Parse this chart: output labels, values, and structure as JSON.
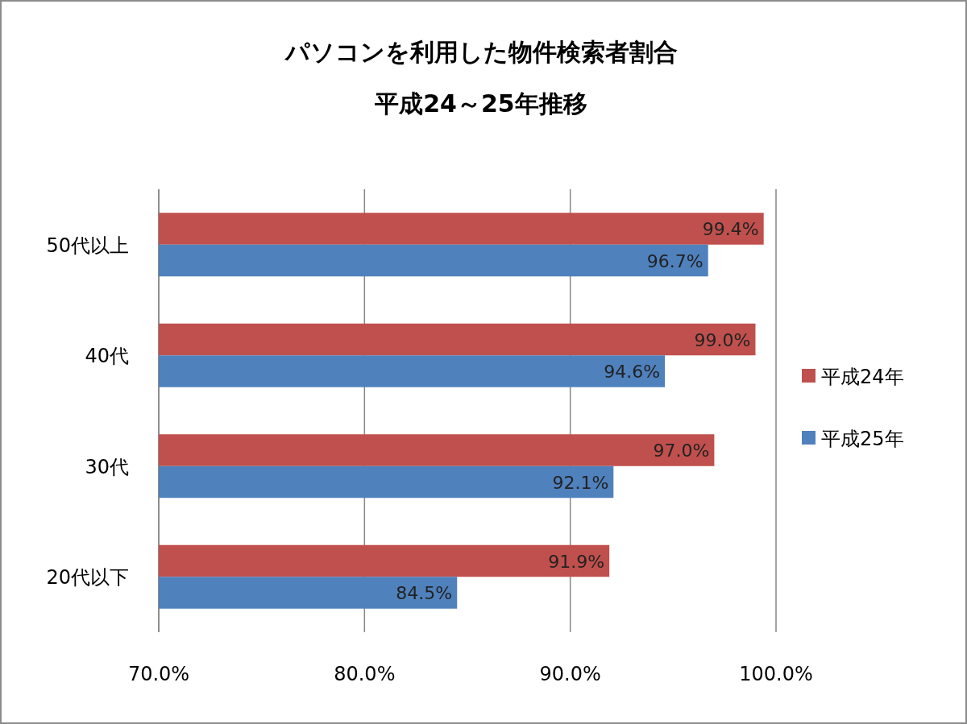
{
  "chart_data": {
    "type": "bar",
    "orientation": "horizontal",
    "title": "パソコンを利用した物件検索者割合",
    "subtitle": "平成24～25年推移",
    "categories": [
      "50代以上",
      "40代",
      "30代",
      "20代以下"
    ],
    "series": [
      {
        "name": "平成24年",
        "color": "#c0504d",
        "values": [
          99.4,
          99.0,
          97.0,
          91.9
        ],
        "value_labels": [
          "99.4%",
          "99.0%",
          "97.0%",
          "91.9%"
        ]
      },
      {
        "name": "平成25年",
        "color": "#4f81bd",
        "values": [
          96.7,
          94.6,
          92.1,
          84.5
        ],
        "value_labels": [
          "96.7%",
          "94.6%",
          "92.1%",
          "84.5%"
        ]
      }
    ],
    "xlim": [
      70,
      100
    ],
    "xticks": [
      {
        "value": 70,
        "label": "70.0%"
      },
      {
        "value": 80,
        "label": "80.0%"
      },
      {
        "value": 90,
        "label": "90.0%"
      },
      {
        "value": 100,
        "label": "100.0%"
      }
    ],
    "grid": "x",
    "legend": "right"
  }
}
